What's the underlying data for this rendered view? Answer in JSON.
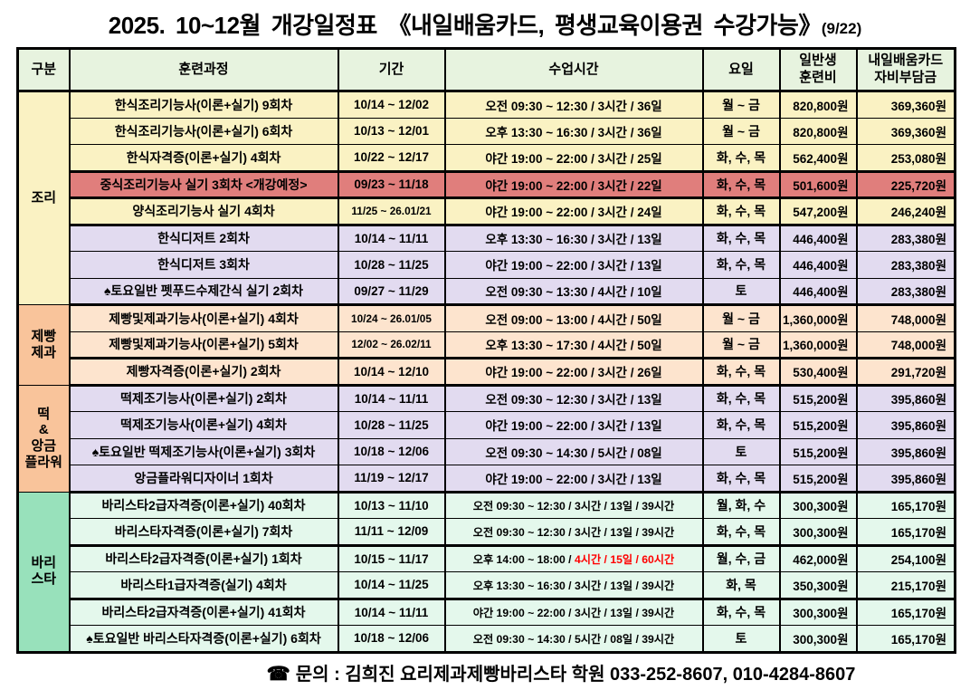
{
  "title": {
    "main": "2025. 10~12월 개강일정표 《내일배움카드, 평생교육이용권 수강가능》",
    "suffix": "(9/22)"
  },
  "colors": {
    "header_bg": "#E7F3DF",
    "yellow": "#FAF2C3",
    "lavender": "#E2DBF0",
    "peach": "#FDE4CE",
    "orange_cat": "#F9C49B",
    "green_cat": "#98E1BB",
    "green_row": "#E4F8EC",
    "red_row": "#E07E7C",
    "red_text": "#FF0000",
    "border": "#000000"
  },
  "table": {
    "headers": [
      "구분",
      "훈련과정",
      "기간",
      "수업시간",
      "요일",
      "일반생\n훈련비",
      "내일배움카드\n자비부담금"
    ],
    "sections": [
      {
        "category": "조리",
        "category_bg": "yellow",
        "rows": [
          {
            "course": "한식조리기능사(이론+실기) 9회차",
            "period": "10/14 ~ 12/02",
            "time": "오전 09:30 ~ 12:30 / 3시간 / 36일",
            "days": "월 ~ 금",
            "fee": "820,800원",
            "copay": "369,360원",
            "bg": "yellow"
          },
          {
            "course": "한식조리기능사(이론+실기) 6회차",
            "period": "10/13 ~ 12/01",
            "time": "오후 13:30 ~ 16:30 / 3시간 / 36일",
            "days": "월 ~ 금",
            "fee": "820,800원",
            "copay": "369,360원",
            "bg": "yellow"
          },
          {
            "course": "한식자격증(이론+실기) 4회차",
            "period": "10/22 ~ 12/17",
            "time": "야간 19:00 ~ 22:00 / 3시간 / 25일",
            "days": "화, 수, 목",
            "fee": "562,400원",
            "copay": "253,080원",
            "bg": "yellow",
            "thick_bottom": true
          },
          {
            "course": "중식조리기능사 실기 3회차 <개강예정>",
            "period": "09/23 ~ 11/18",
            "time": "야간 19:00 ~ 22:00 / 3시간 / 22일",
            "days": "화, 수, 목",
            "fee": "501,600원",
            "copay": "225,720원",
            "bg": "red_row",
            "thick_bottom": true
          },
          {
            "course": "양식조리기능사 실기 4회차",
            "period": "11/25 ~ 26.01/21",
            "time": "야간 19:00 ~ 22:00 / 3시간 / 24일",
            "days": "화, 수, 목",
            "fee": "547,200원",
            "copay": "246,240원",
            "bg": "yellow",
            "thick_bottom": true
          },
          {
            "course": "한식디저트 2회차",
            "period": "10/14 ~ 11/11",
            "time": "오후 13:30 ~ 16:30 / 3시간 / 13일",
            "days": "화, 수, 목",
            "fee": "446,400원",
            "copay": "283,380원",
            "bg": "lavender"
          },
          {
            "course": "한식디저트 3회차",
            "period": "10/28 ~ 11/25",
            "time": "야간 19:00 ~ 22:00 / 3시간 / 13일",
            "days": "화, 수, 목",
            "fee": "446,400원",
            "copay": "283,380원",
            "bg": "lavender"
          },
          {
            "course": "♠토요일반 펫푸드수제간식 실기 2회차",
            "period": "09/27 ~ 11/29",
            "time": "오전 09:30 ~ 13:30 / 4시간 / 10일",
            "days": "토",
            "fee": "446,400원",
            "copay": "283,380원",
            "bg": "lavender"
          }
        ]
      },
      {
        "category": "제빵\n제과",
        "category_bg": "orange_cat",
        "rows": [
          {
            "course": "제빵및제과기능사(이론+실기) 4회차",
            "period": "10/24 ~ 26.01/05",
            "time": "오전 09:00 ~ 13:00 / 4시간 / 50일",
            "days": "월 ~ 금",
            "fee": "1,360,000원",
            "copay": "748,000원",
            "bg": "peach"
          },
          {
            "course": "제빵및제과기능사(이론+실기) 5회차",
            "period": "12/02 ~ 26.02/11",
            "time": "오후 13:30 ~ 17:30 / 4시간 / 50일",
            "days": "월 ~ 금",
            "fee": "1,360,000원",
            "copay": "748,000원",
            "bg": "peach",
            "thick_bottom": true
          },
          {
            "course": "제빵자격증(이론+실기) 2회차",
            "period": "10/14 ~ 12/10",
            "time": "야간 19:00 ~ 22:00 / 3시간 / 26일",
            "days": "화, 수, 목",
            "fee": "530,400원",
            "copay": "291,720원",
            "bg": "peach"
          }
        ]
      },
      {
        "category": "떡\n&\n앙금\n플라워",
        "category_bg": "orange_cat",
        "rows": [
          {
            "course": "떡제조기능사(이론+실기) 2회차",
            "period": "10/14 ~ 11/11",
            "time": "오전 09:30 ~ 12:30 / 3시간 / 13일",
            "days": "화, 수, 목",
            "fee": "515,200원",
            "copay": "395,860원",
            "bg": "lavender"
          },
          {
            "course": "떡제조기능사(이론+실기) 4회차",
            "period": "10/28 ~ 11/25",
            "time": "야간 19:00 ~ 22:00 / 3시간 / 13일",
            "days": "화, 수, 목",
            "fee": "515,200원",
            "copay": "395,860원",
            "bg": "lavender"
          },
          {
            "course": "♠토요일반 떡제조기능사(이론+실기) 3회차",
            "period": "10/18 ~ 12/06",
            "time": "오전 09:30 ~ 14:30 / 5시간 / 08일",
            "days": "토",
            "fee": "515,200원",
            "copay": "395,860원",
            "bg": "lavender"
          },
          {
            "course": "앙금플라워디자이너 1회차",
            "period": "11/19 ~ 12/17",
            "time": "야간 19:00 ~ 22:00 / 3시간 / 13일",
            "days": "화, 수, 목",
            "fee": "515,200원",
            "copay": "395,860원",
            "bg": "lavender"
          }
        ]
      },
      {
        "category": "바리\n스타",
        "category_bg": "green_cat",
        "rows": [
          {
            "course": "바리스타2급자격증(이론+실기) 40회차",
            "period": "10/13 ~ 11/10",
            "time": "오전 09:30 ~ 12:30 / 3시간 / 13일 / 39시간",
            "days": "월, 화, 수",
            "fee": "300,300원",
            "copay": "165,170원",
            "bg": "green_row"
          },
          {
            "course": "바리스타자격증(이론+실기) 7회차",
            "period": "11/11 ~ 12/09",
            "time": "오전 09:30 ~ 12:30 / 3시간 / 13일 / 39시간",
            "days": "화, 수, 목",
            "fee": "300,300원",
            "copay": "165,170원",
            "bg": "green_row",
            "thick_bottom": true
          },
          {
            "course": "바리스타2급자격증(이론+실기) 1회차",
            "period": "10/15 ~ 11/17",
            "time": "오후 14:00 ~ 18:00 / ",
            "time_red": "4시간 / 15일 / 60시간",
            "days": "월, 수, 금",
            "fee": "462,000원",
            "copay": "254,100원",
            "bg": "green_row"
          },
          {
            "course": "바리스타1급자격증(실기) 4회차",
            "period": "10/14 ~ 11/25",
            "time": "오후 13:30 ~ 16:30 / 3시간 / 13일 / 39시간",
            "days": "화, 목",
            "fee": "350,300원",
            "copay": "215,170원",
            "bg": "green_row",
            "thick_bottom": true
          },
          {
            "course": "바리스타2급자격증(이론+실기) 41회차",
            "period": "10/14 ~ 11/11",
            "time": "야간 19:00 ~ 22:00 / 3시간 / 13일 / 39시간",
            "days": "화, 수, 목",
            "fee": "300,300원",
            "copay": "165,170원",
            "bg": "green_row"
          },
          {
            "course": "♠토요일반 바리스타자격증(이론+실기) 6회차",
            "period": "10/18 ~ 12/06",
            "time": "오전 09:30 ~ 14:30 / 5시간 / 08일 / 39시간",
            "days": "토",
            "fee": "300,300원",
            "copay": "165,170원",
            "bg": "green_row"
          }
        ]
      }
    ]
  },
  "footer": {
    "phone_icon": "☎",
    "text": "문의 : 김희진 요리제과제빵바리스타 학원 033-252-8607, 010-4284-8607"
  }
}
